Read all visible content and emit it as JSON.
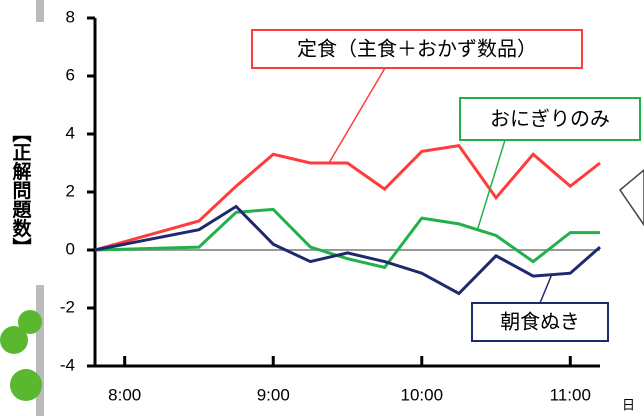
{
  "chart_data": {
    "type": "line",
    "y_label": "【正解問題数】",
    "x": [
      7.8,
      8.5,
      8.75,
      9.0,
      9.25,
      9.5,
      9.75,
      10.0,
      10.25,
      10.5,
      10.75,
      11.0,
      11.2
    ],
    "series": [
      {
        "name": "定食（主食＋おかず数品）",
        "color": "#ff3c3c",
        "values": [
          0,
          1.0,
          2.2,
          3.3,
          3.0,
          3.0,
          2.1,
          3.4,
          3.6,
          1.8,
          3.3,
          2.2,
          3.0
        ]
      },
      {
        "name": "おにぎりのみ",
        "color": "#22b04a",
        "values": [
          0,
          0.1,
          1.3,
          1.4,
          0.1,
          -0.3,
          -0.6,
          1.1,
          0.9,
          0.5,
          -0.4,
          0.6,
          0.6
        ]
      },
      {
        "name": "朝食ぬき",
        "color": "#1f2a6e",
        "values": [
          0,
          0.7,
          1.5,
          0.2,
          -0.4,
          -0.1,
          -0.4,
          -0.8,
          -1.5,
          -0.2,
          -0.9,
          -0.8,
          0.1
        ]
      }
    ],
    "xlim": [
      7.8,
      11.2
    ],
    "xticks": [
      {
        "value": 8,
        "label": "8:00"
      },
      {
        "value": 9,
        "label": "9:00"
      },
      {
        "value": 10,
        "label": "10:00"
      },
      {
        "value": 11,
        "label": "11:00"
      }
    ],
    "ylim": [
      -4,
      8
    ],
    "yticks": [
      -4,
      -2,
      0,
      2,
      4,
      6,
      8
    ],
    "zero_line": true,
    "note": "日"
  }
}
